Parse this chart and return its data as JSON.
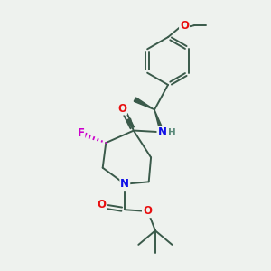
{
  "bg_color": "#eef2ee",
  "bond_color": "#3a5a4a",
  "atom_colors": {
    "O": "#e81010",
    "N": "#1010e8",
    "F": "#cc00cc",
    "H": "#5a8a7a",
    "C": "#3a5a4a"
  },
  "figsize": [
    3.0,
    3.0
  ],
  "dpi": 100,
  "bond_lw": 1.4,
  "font_size": 8.5
}
